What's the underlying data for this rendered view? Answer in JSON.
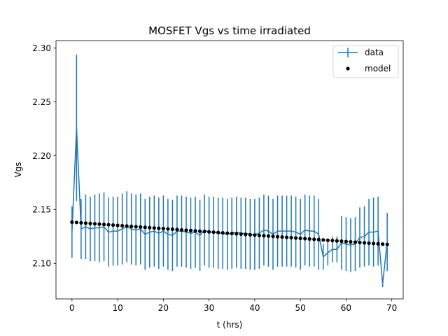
{
  "chart_data": {
    "type": "line",
    "title": "MOSFET Vgs vs time irradiated",
    "xlabel": "t (hrs)",
    "ylabel": "Vgs",
    "xlim": [
      -3.5,
      72.5
    ],
    "ylim": [
      2.067,
      2.307
    ],
    "xticks": [
      0,
      10,
      20,
      30,
      40,
      50,
      60,
      70
    ],
    "xtick_labels": [
      "0",
      "10",
      "20",
      "30",
      "40",
      "50",
      "60",
      "70"
    ],
    "yticks": [
      2.1,
      2.15,
      2.2,
      2.25,
      2.3
    ],
    "ytick_labels": [
      "2.10",
      "2.15",
      "2.20",
      "2.25",
      "2.30"
    ],
    "grid": false,
    "legend_position": "top-right",
    "colors": {
      "data": "#1f77b4",
      "model": "#000000"
    },
    "series": [
      {
        "name": "data",
        "kind": "errorbar-line",
        "x": [
          0,
          1,
          2,
          3,
          4,
          5,
          6,
          7,
          8,
          9,
          10,
          11,
          12,
          13,
          14,
          15,
          16,
          17,
          18,
          19,
          20,
          21,
          22,
          23,
          24,
          25,
          26,
          27,
          28,
          29,
          30,
          31,
          32,
          33,
          34,
          35,
          36,
          37,
          38,
          39,
          40,
          41,
          42,
          43,
          44,
          45,
          46,
          47,
          48,
          49,
          50,
          51,
          52,
          53,
          54,
          55,
          56,
          57,
          58,
          59,
          60,
          61,
          62,
          63,
          64,
          65,
          66,
          67,
          68,
          69
        ],
        "y": [
          2.129,
          2.226,
          2.132,
          2.134,
          2.132,
          2.133,
          2.133,
          2.134,
          2.129,
          2.13,
          2.13,
          2.132,
          2.134,
          2.132,
          2.131,
          2.132,
          2.127,
          2.129,
          2.13,
          2.128,
          2.13,
          2.127,
          2.126,
          2.13,
          2.13,
          2.129,
          2.128,
          2.129,
          2.126,
          2.131,
          2.129,
          2.129,
          2.128,
          2.128,
          2.127,
          2.128,
          2.129,
          2.128,
          2.128,
          2.127,
          2.127,
          2.128,
          2.131,
          2.13,
          2.127,
          2.13,
          2.13,
          2.13,
          2.13,
          2.129,
          2.127,
          2.131,
          2.13,
          2.13,
          2.127,
          2.106,
          2.11,
          2.113,
          2.113,
          2.119,
          2.118,
          2.117,
          2.118,
          2.124,
          2.125,
          2.129,
          2.129,
          2.13,
          2.081,
          2.12
        ],
        "err": [
          0.024,
          0.068,
          0.028,
          0.03,
          0.03,
          0.031,
          0.032,
          0.032,
          0.032,
          0.032,
          0.032,
          0.033,
          0.033,
          0.033,
          0.033,
          0.033,
          0.033,
          0.033,
          0.033,
          0.033,
          0.033,
          0.033,
          0.033,
          0.033,
          0.033,
          0.033,
          0.033,
          0.033,
          0.033,
          0.033,
          0.033,
          0.033,
          0.033,
          0.033,
          0.033,
          0.033,
          0.033,
          0.033,
          0.033,
          0.033,
          0.033,
          0.033,
          0.033,
          0.033,
          0.033,
          0.033,
          0.033,
          0.033,
          0.033,
          0.033,
          0.033,
          0.033,
          0.033,
          0.033,
          0.033,
          0.012,
          0.012,
          0.012,
          0.012,
          0.025,
          0.025,
          0.025,
          0.025,
          0.028,
          0.028,
          0.031,
          0.032,
          0.032,
          0.003,
          0.027
        ]
      },
      {
        "name": "model",
        "kind": "points",
        "x": [
          0,
          1,
          2,
          3,
          4,
          5,
          6,
          7,
          8,
          9,
          10,
          11,
          12,
          13,
          14,
          15,
          16,
          17,
          18,
          19,
          20,
          21,
          22,
          23,
          24,
          25,
          26,
          27,
          28,
          29,
          30,
          31,
          32,
          33,
          34,
          35,
          36,
          37,
          38,
          39,
          40,
          41,
          42,
          43,
          44,
          45,
          46,
          47,
          48,
          49,
          50,
          51,
          52,
          53,
          54,
          55,
          56,
          57,
          58,
          59,
          60,
          61,
          62,
          63,
          64,
          65,
          66,
          67,
          68,
          69
        ],
        "y": [
          2.1383,
          2.138,
          2.1377,
          2.1374,
          2.1371,
          2.1368,
          2.1365,
          2.1362,
          2.1359,
          2.1356,
          2.1353,
          2.135,
          2.1347,
          2.1344,
          2.1341,
          2.1338,
          2.1335,
          2.1332,
          2.1329,
          2.1326,
          2.1323,
          2.132,
          2.1317,
          2.1314,
          2.1311,
          2.1308,
          2.1305,
          2.1302,
          2.1299,
          2.1296,
          2.1293,
          2.129,
          2.1287,
          2.1284,
          2.1281,
          2.1278,
          2.1275,
          2.1272,
          2.1269,
          2.1266,
          2.1263,
          2.126,
          2.1257,
          2.1254,
          2.1251,
          2.1248,
          2.1245,
          2.1242,
          2.1239,
          2.1236,
          2.1233,
          2.123,
          2.1227,
          2.1224,
          2.1221,
          2.1218,
          2.1215,
          2.1212,
          2.1209,
          2.1206,
          2.1203,
          2.12,
          2.1197,
          2.1194,
          2.1191,
          2.1188,
          2.1185,
          2.1182,
          2.1179,
          2.1176
        ]
      }
    ]
  }
}
